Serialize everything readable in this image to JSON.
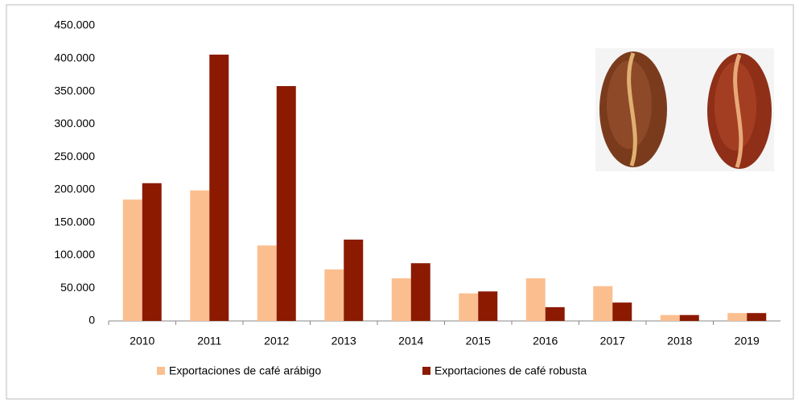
{
  "chart_data": {
    "type": "bar",
    "categories": [
      "2010",
      "2011",
      "2012",
      "2013",
      "2014",
      "2015",
      "2016",
      "2017",
      "2018",
      "2019"
    ],
    "series": [
      {
        "name": "Exportaciones de café arábigo",
        "color": "#fbbf8f",
        "values": [
          185000,
          199000,
          115000,
          78500,
          65000,
          42000,
          65000,
          53000,
          9000,
          12000
        ]
      },
      {
        "name": "Exportaciones de café robusta",
        "color": "#8b1a00",
        "values": [
          210000,
          406000,
          358000,
          124000,
          88000,
          45000,
          21000,
          28000,
          9000,
          12000
        ]
      }
    ],
    "ylim": [
      0,
      450000
    ],
    "yticks": [
      0,
      {
        "value": 50000,
        "label": "50.000"
      },
      {
        "value": 100000,
        "label": "100.000"
      },
      {
        "value": 150000,
        "label": "150.000"
      },
      {
        "value": 200000,
        "label": "200.000"
      },
      {
        "value": 250000,
        "label": "250.000"
      },
      {
        "value": 300000,
        "label": "300.000"
      },
      {
        "value": 350000,
        "label": "350.000"
      },
      {
        "value": 400000,
        "label": "400.000"
      },
      {
        "value": 450000,
        "label": "450.000"
      }
    ],
    "grid": false,
    "legend": "bottom"
  }
}
